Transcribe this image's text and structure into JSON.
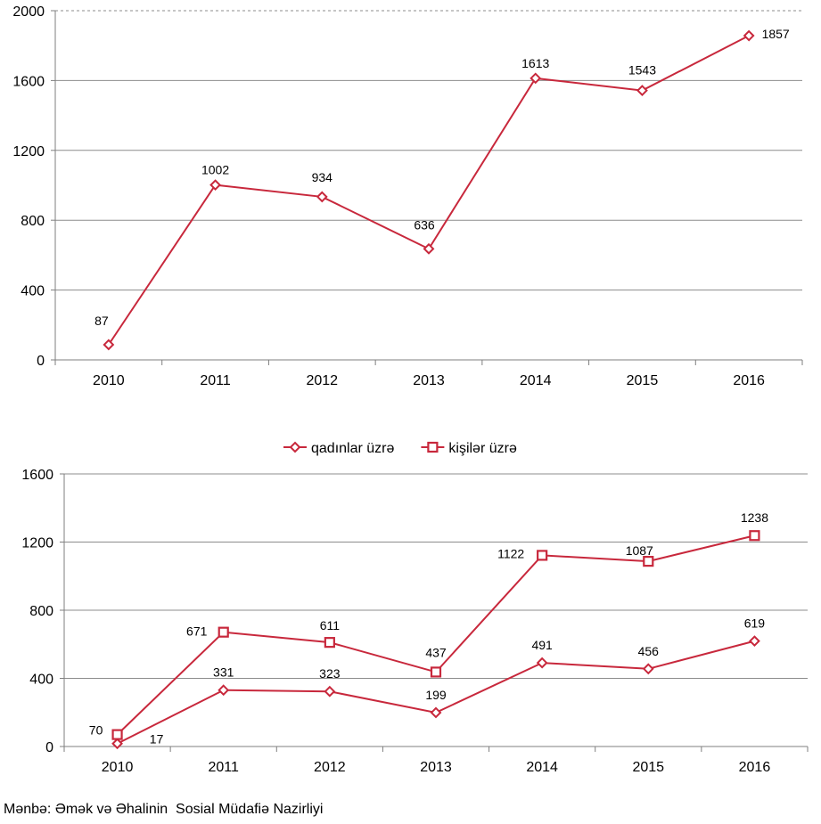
{
  "colors": {
    "series": "#c8283c",
    "grid": "#8c8c8c",
    "axis": "#7f7f7f"
  },
  "chart_data": [
    {
      "type": "line",
      "x": [
        "2010",
        "2011",
        "2012",
        "2013",
        "2014",
        "2015",
        "2016"
      ],
      "series": [
        {
          "values": [
            87,
            1002,
            934,
            636,
            1613,
            1543,
            1857
          ],
          "marker": "diamond"
        }
      ],
      "ylim": [
        0,
        2000
      ],
      "yticks": [
        0,
        400,
        800,
        1200,
        1600,
        2000
      ],
      "grid": true,
      "legend": "none"
    },
    {
      "type": "line",
      "x": [
        "2010",
        "2011",
        "2012",
        "2013",
        "2014",
        "2015",
        "2016"
      ],
      "series": [
        {
          "name": "qadınlar üzrə",
          "values": [
            17,
            331,
            323,
            199,
            491,
            456,
            619
          ],
          "marker": "diamond"
        },
        {
          "name": "kişilər üzrə",
          "values": [
            70,
            671,
            611,
            437,
            1122,
            1087,
            1238
          ],
          "marker": "square"
        }
      ],
      "ylim": [
        0,
        1600
      ],
      "yticks": [
        0,
        400,
        800,
        1200,
        1600
      ],
      "grid": true,
      "legend": "top-center"
    }
  ],
  "source": "Mənbə: Əmək və Əhalinin  Sosial Müdafiə Nazirliyi"
}
